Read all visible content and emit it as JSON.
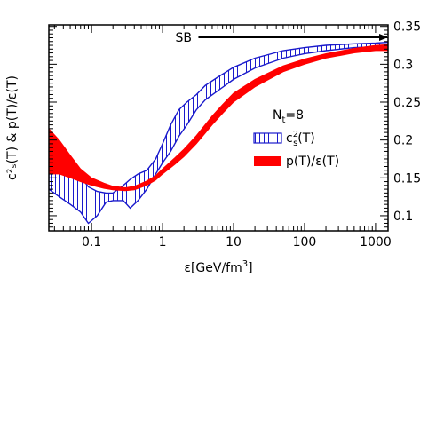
{
  "chart_data": {
    "type": "line",
    "xscale": "log",
    "xlim": [
      0.025,
      1500
    ],
    "ylim": [
      0.08,
      0.352
    ],
    "xlabel_main": "ε[GeV/fm",
    "xlabel_sup": "3",
    "xlabel_end": "]",
    "ylabel": "c²ₛ(T) & p(T)/ε(T)",
    "x_ticks": [
      {
        "value": 0.1,
        "label": "0.1"
      },
      {
        "value": 1,
        "label": "1"
      },
      {
        "value": 10,
        "label": "10"
      },
      {
        "value": 100,
        "label": "100"
      },
      {
        "value": 1000,
        "label": "1000"
      }
    ],
    "y_ticks": [
      {
        "value": 0.1,
        "label": "0.1"
      },
      {
        "value": 0.15,
        "label": "0.15"
      },
      {
        "value": 0.2,
        "label": "0.2"
      },
      {
        "value": 0.25,
        "label": "0.25"
      },
      {
        "value": 0.3,
        "label": "0.3"
      },
      {
        "value": 0.35,
        "label": "0.35"
      }
    ],
    "annotations": {
      "sb_label": "SB",
      "sb_value": 0.3333,
      "sb_arrow_from_x": 3.2,
      "sb_arrow_to_x": 1500,
      "nt_main": "N",
      "nt_sub": "t",
      "nt_rest": "=8"
    },
    "legend": {
      "placement": "right-middle",
      "cs2_main": "c",
      "cs2_sup": "2",
      "cs2_sub": "s",
      "cs2_rest": "(T)",
      "pe": "p(T)/ε(T)"
    },
    "series": [
      {
        "name": "c²ₛ(T)",
        "style": "hatched-band",
        "color": "#1a1acc",
        "x": [
          0.025,
          0.035,
          0.05,
          0.07,
          0.09,
          0.12,
          0.16,
          0.2,
          0.28,
          0.35,
          0.45,
          0.6,
          0.8,
          1.0,
          1.3,
          1.7,
          2.2,
          3,
          4,
          6,
          10,
          20,
          50,
          100,
          200,
          500,
          1000,
          1500
        ],
        "lower": [
          0.135,
          0.125,
          0.115,
          0.105,
          0.09,
          0.1,
          0.118,
          0.12,
          0.12,
          0.11,
          0.12,
          0.135,
          0.155,
          0.17,
          0.185,
          0.205,
          0.22,
          0.24,
          0.253,
          0.265,
          0.28,
          0.295,
          0.308,
          0.314,
          0.318,
          0.322,
          0.323,
          0.323
        ],
        "upper": [
          0.21,
          0.195,
          0.175,
          0.152,
          0.138,
          0.132,
          0.13,
          0.13,
          0.14,
          0.148,
          0.155,
          0.16,
          0.175,
          0.195,
          0.22,
          0.24,
          0.25,
          0.26,
          0.272,
          0.283,
          0.296,
          0.308,
          0.318,
          0.322,
          0.325,
          0.327,
          0.328,
          0.329
        ]
      },
      {
        "name": "p(T)/ε(T)",
        "style": "filled-band",
        "color": "#ff0000",
        "x": [
          0.025,
          0.035,
          0.05,
          0.07,
          0.1,
          0.15,
          0.2,
          0.3,
          0.4,
          0.6,
          0.8,
          1.0,
          1.5,
          2,
          3,
          5,
          7,
          10,
          20,
          50,
          100,
          200,
          500,
          1000,
          1500
        ],
        "lower": [
          0.155,
          0.155,
          0.15,
          0.145,
          0.14,
          0.136,
          0.134,
          0.133,
          0.134,
          0.14,
          0.147,
          0.155,
          0.168,
          0.178,
          0.195,
          0.22,
          0.235,
          0.25,
          0.27,
          0.29,
          0.3,
          0.308,
          0.315,
          0.318,
          0.318
        ],
        "upper": [
          0.215,
          0.2,
          0.18,
          0.162,
          0.15,
          0.143,
          0.139,
          0.137,
          0.139,
          0.146,
          0.153,
          0.162,
          0.177,
          0.188,
          0.206,
          0.232,
          0.247,
          0.262,
          0.28,
          0.298,
          0.307,
          0.314,
          0.321,
          0.325,
          0.326
        ]
      }
    ]
  }
}
